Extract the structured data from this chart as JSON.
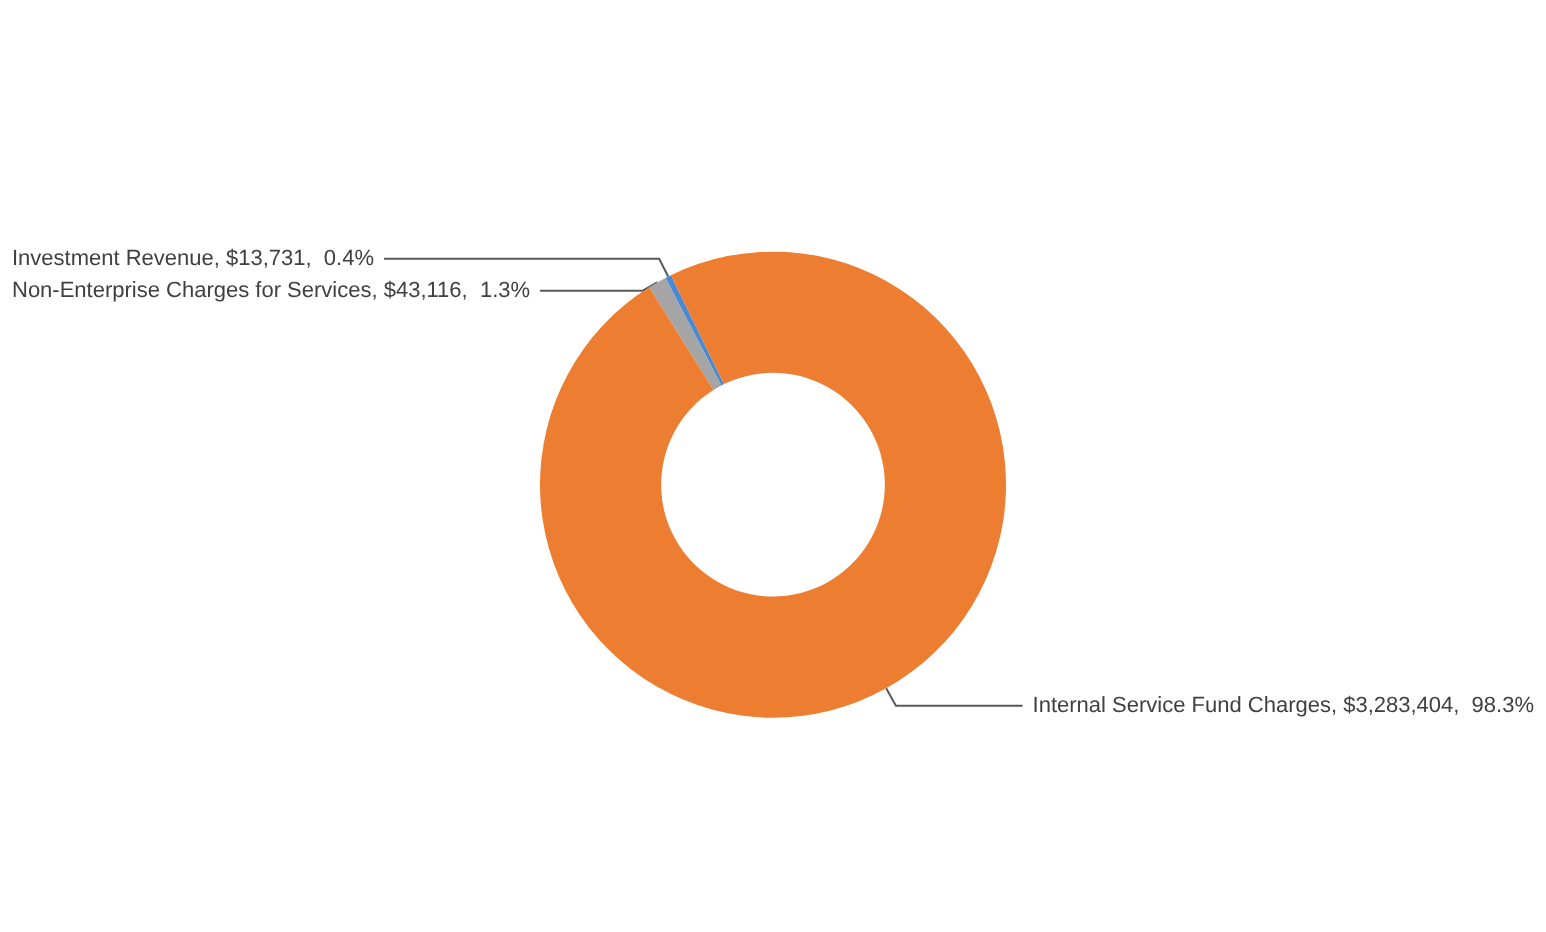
{
  "chart_data": {
    "type": "donut",
    "categories": [
      "Investment Revenue",
      "Non-Enterprise Charges for Services",
      "Internal Service Fund Charges"
    ],
    "values": [
      13731,
      43116,
      3283404
    ],
    "value_labels": [
      "$13,731,  0.4%",
      "$43,116,  1.3%",
      "$3,283,404,  98.3%"
    ],
    "colors": [
      "#4a8ad4",
      "#a5a5a5",
      "#ed7d31"
    ],
    "legend": false
  }
}
